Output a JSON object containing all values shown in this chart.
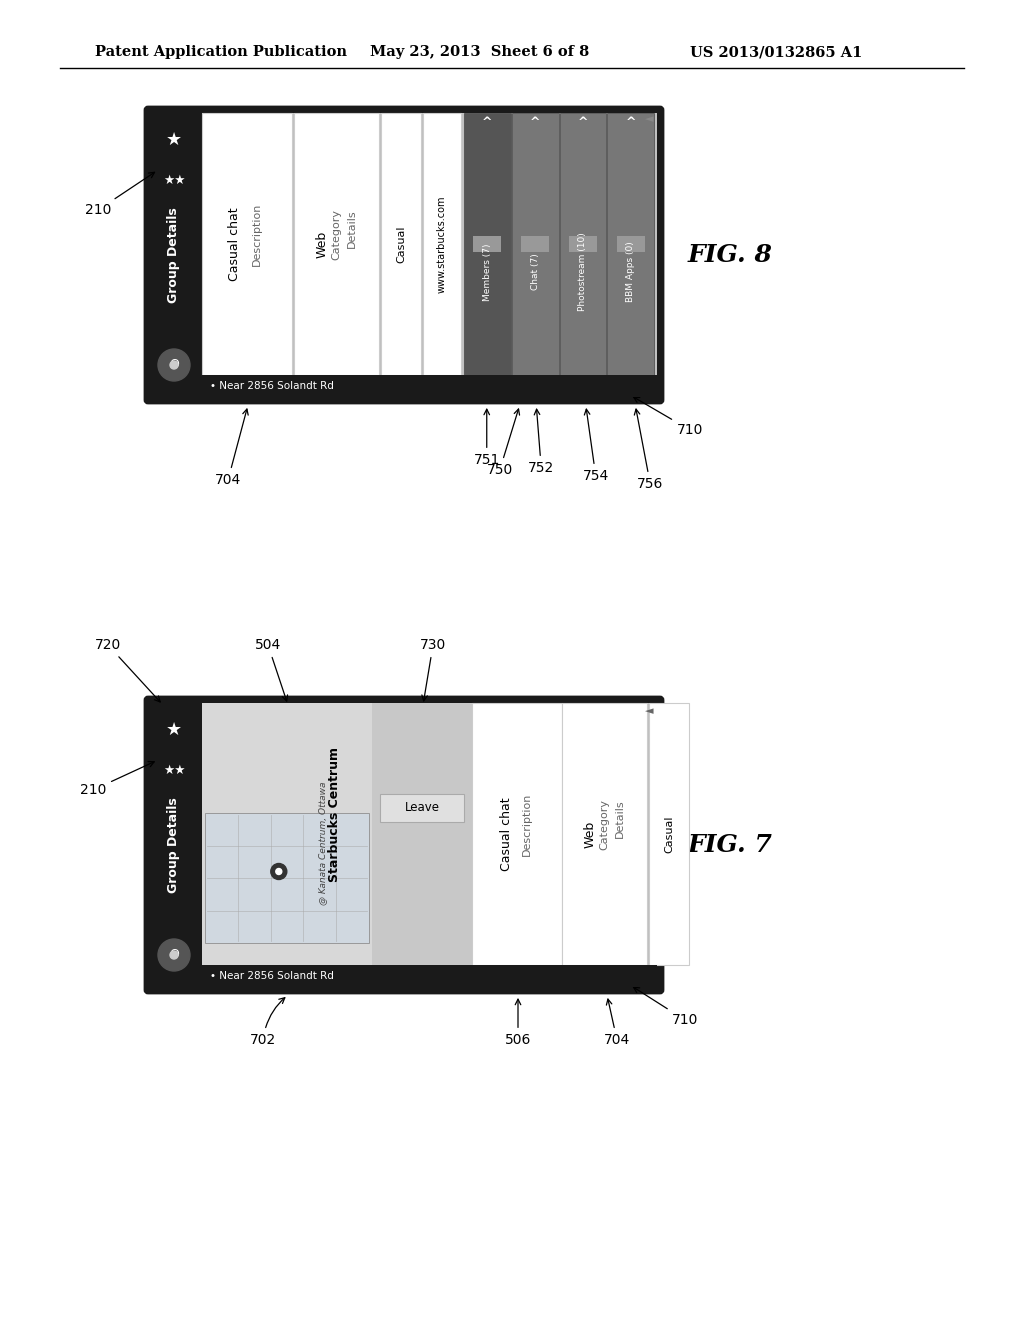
{
  "bg_color": "#ffffff",
  "header_text": "Patent Application Publication",
  "header_date": "May 23, 2013  Sheet 6 of 8",
  "header_patent": "US 2013/0132865 A1",
  "fig7_label": "FIG. 7",
  "fig8_label": "FIG. 8",
  "dark_sidebar": "#2a2a2a",
  "dark_bar": "#333333",
  "light_gray": "#b8b8b8",
  "panel_bg": "#e8e8e8",
  "white": "#ffffff",
  "medium_gray": "#888888",
  "dark_tab": "#666666"
}
